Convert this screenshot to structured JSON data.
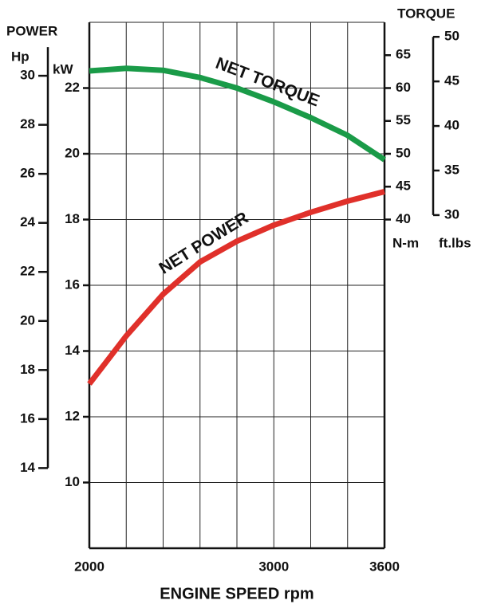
{
  "chart_data": {
    "type": "line",
    "x_label": "ENGINE SPEED rpm",
    "x": [
      2000,
      2200,
      2400,
      2600,
      2800,
      3000,
      3200,
      3400,
      3600
    ],
    "xlim": [
      2000,
      3600
    ],
    "xticks": [
      2000,
      3000,
      3600
    ],
    "xgrid": [
      2000,
      2200,
      2400,
      2600,
      2800,
      3000,
      3200,
      3400,
      3600
    ],
    "power_title": "POWER",
    "y_label": "kW",
    "ylim": [
      8,
      24
    ],
    "yticks": [
      10,
      12,
      14,
      16,
      18,
      20,
      22
    ],
    "grid": true,
    "hp_axis": {
      "label": "Hp",
      "lim": [
        10.73,
        32.18
      ],
      "ticks": [
        14,
        16,
        18,
        20,
        22,
        24,
        26,
        28,
        30
      ]
    },
    "torque_title": "TORQUE",
    "y2_label": "N-m",
    "y2lim": [
      -10,
      70
    ],
    "y2ticks": [
      40,
      45,
      50,
      55,
      60,
      65
    ],
    "ftlb_axis": {
      "label": "ft.lbs",
      "lim": [
        -7.38,
        51.63
      ],
      "ticks": [
        30,
        35,
        40,
        45,
        50
      ]
    },
    "series": [
      {
        "name": "NET TORQUE",
        "color": "#1a9b48",
        "axis": "y2",
        "values": [
          62.6,
          63.0,
          62.7,
          61.6,
          60.0,
          57.9,
          55.5,
          52.8,
          49.1
        ]
      },
      {
        "name": "NET POWER",
        "color": "#e0302a",
        "values": [
          13.0,
          14.46,
          15.73,
          16.71,
          17.34,
          17.83,
          18.22,
          18.56,
          18.85
        ]
      }
    ]
  }
}
